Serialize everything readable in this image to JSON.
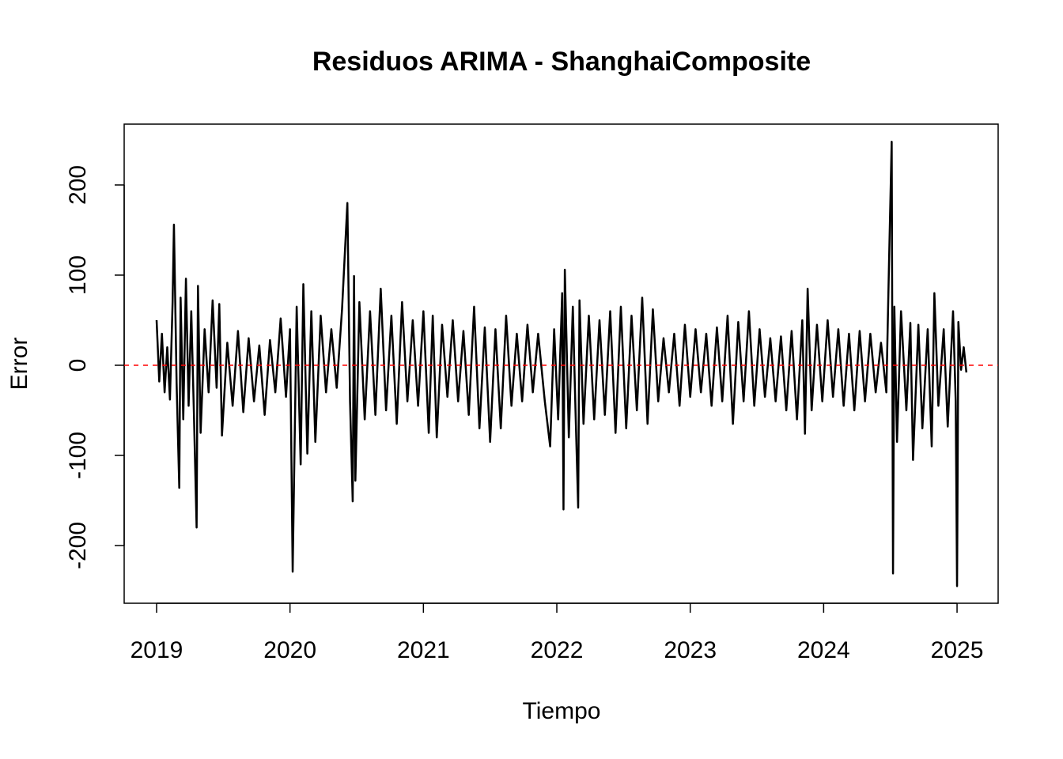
{
  "chart_data": {
    "type": "line",
    "title": "Residuos ARIMA - ShanghaiComposite",
    "xlabel": "Tiempo",
    "ylabel": "Error",
    "color": "#000000",
    "x": [
      2019.0,
      2019.02,
      2019.04,
      2019.06,
      2019.08,
      2019.1,
      2019.12,
      2019.13,
      2019.15,
      2019.17,
      2019.18,
      2019.2,
      2019.22,
      2019.24,
      2019.26,
      2019.28,
      2019.3,
      2019.31,
      2019.33,
      2019.36,
      2019.39,
      2019.42,
      2019.45,
      2019.47,
      2019.49,
      2019.53,
      2019.57,
      2019.61,
      2019.65,
      2019.69,
      2019.73,
      2019.77,
      2019.81,
      2019.85,
      2019.89,
      2019.93,
      2019.97,
      2020.0,
      2020.02,
      2020.05,
      2020.08,
      2020.1,
      2020.13,
      2020.16,
      2020.19,
      2020.23,
      2020.27,
      2020.31,
      2020.35,
      2020.39,
      2020.43,
      2020.45,
      2020.47,
      2020.48,
      2020.49,
      2020.52,
      2020.56,
      2020.6,
      2020.64,
      2020.68,
      2020.72,
      2020.76,
      2020.8,
      2020.84,
      2020.88,
      2020.92,
      2020.96,
      2021.0,
      2021.04,
      2021.07,
      2021.1,
      2021.14,
      2021.18,
      2021.22,
      2021.26,
      2021.3,
      2021.34,
      2021.38,
      2021.42,
      2021.46,
      2021.5,
      2021.54,
      2021.58,
      2021.62,
      2021.66,
      2021.7,
      2021.74,
      2021.78,
      2021.82,
      2021.86,
      2021.91,
      2021.95,
      2021.98,
      2022.01,
      2022.04,
      2022.05,
      2022.06,
      2022.09,
      2022.12,
      2022.14,
      2022.16,
      2022.17,
      2022.2,
      2022.24,
      2022.28,
      2022.32,
      2022.36,
      2022.4,
      2022.44,
      2022.48,
      2022.52,
      2022.56,
      2022.6,
      2022.64,
      2022.68,
      2022.72,
      2022.76,
      2022.8,
      2022.84,
      2022.88,
      2022.92,
      2022.96,
      2023.0,
      2023.04,
      2023.08,
      2023.12,
      2023.16,
      2023.2,
      2023.24,
      2023.28,
      2023.32,
      2023.36,
      2023.4,
      2023.44,
      2023.48,
      2023.52,
      2023.56,
      2023.6,
      2023.64,
      2023.68,
      2023.72,
      2023.76,
      2023.8,
      2023.84,
      2023.86,
      2023.88,
      2023.91,
      2023.95,
      2023.99,
      2024.03,
      2024.07,
      2024.11,
      2024.15,
      2024.19,
      2024.23,
      2024.27,
      2024.31,
      2024.35,
      2024.39,
      2024.43,
      2024.47,
      2024.49,
      2024.51,
      2024.52,
      2024.53,
      2024.55,
      2024.58,
      2024.62,
      2024.65,
      2024.67,
      2024.71,
      2024.74,
      2024.78,
      2024.81,
      2024.83,
      2024.86,
      2024.9,
      2024.93,
      2024.97,
      2024.99,
      2025.0,
      2025.01,
      2025.03,
      2025.05,
      2025.07
    ],
    "values": [
      50,
      -18,
      35,
      -30,
      20,
      -38,
      70,
      156,
      -20,
      -136,
      75,
      -60,
      96,
      -45,
      60,
      -55,
      -180,
      88,
      -75,
      40,
      -30,
      72,
      -25,
      68,
      -78,
      25,
      -45,
      38,
      -52,
      30,
      -40,
      22,
      -55,
      28,
      -30,
      52,
      -35,
      40,
      -229,
      65,
      -110,
      90,
      -98,
      60,
      -85,
      55,
      -30,
      40,
      -25,
      62,
      180,
      -40,
      -151,
      99,
      -128,
      70,
      -60,
      60,
      -55,
      85,
      -50,
      55,
      -65,
      70,
      -40,
      50,
      -45,
      60,
      -75,
      55,
      -80,
      45,
      -35,
      50,
      -40,
      38,
      -55,
      65,
      -70,
      42,
      -85,
      40,
      -70,
      55,
      -45,
      35,
      -40,
      45,
      -30,
      35,
      -40,
      -90,
      40,
      -60,
      80,
      -160,
      106,
      -80,
      65,
      -50,
      -158,
      72,
      -65,
      55,
      -60,
      50,
      -55,
      60,
      -75,
      65,
      -70,
      55,
      -50,
      75,
      -65,
      62,
      -40,
      30,
      -30,
      35,
      -45,
      45,
      -35,
      40,
      -30,
      35,
      -45,
      42,
      -40,
      55,
      -65,
      48,
      -40,
      60,
      -45,
      40,
      -35,
      30,
      -40,
      32,
      -50,
      38,
      -60,
      50,
      -76,
      85,
      -50,
      45,
      -40,
      50,
      -35,
      40,
      -45,
      35,
      -50,
      38,
      -40,
      35,
      -30,
      25,
      -30,
      113,
      248,
      -231,
      65,
      -85,
      60,
      -50,
      47,
      -105,
      45,
      -70,
      40,
      -90,
      80,
      -45,
      40,
      -68,
      60,
      -40,
      -245,
      48,
      -5,
      20,
      -8
    ],
    "xlim": [
      2018.757,
      2025.308
    ],
    "ylim": [
      -264,
      267.5
    ],
    "xticks": [
      2019,
      2020,
      2021,
      2022,
      2023,
      2024,
      2025
    ],
    "yticks": [
      -200,
      -100,
      0,
      100,
      200
    ],
    "hline": {
      "value": 0,
      "color": "#ff0000",
      "dashed": true
    }
  }
}
